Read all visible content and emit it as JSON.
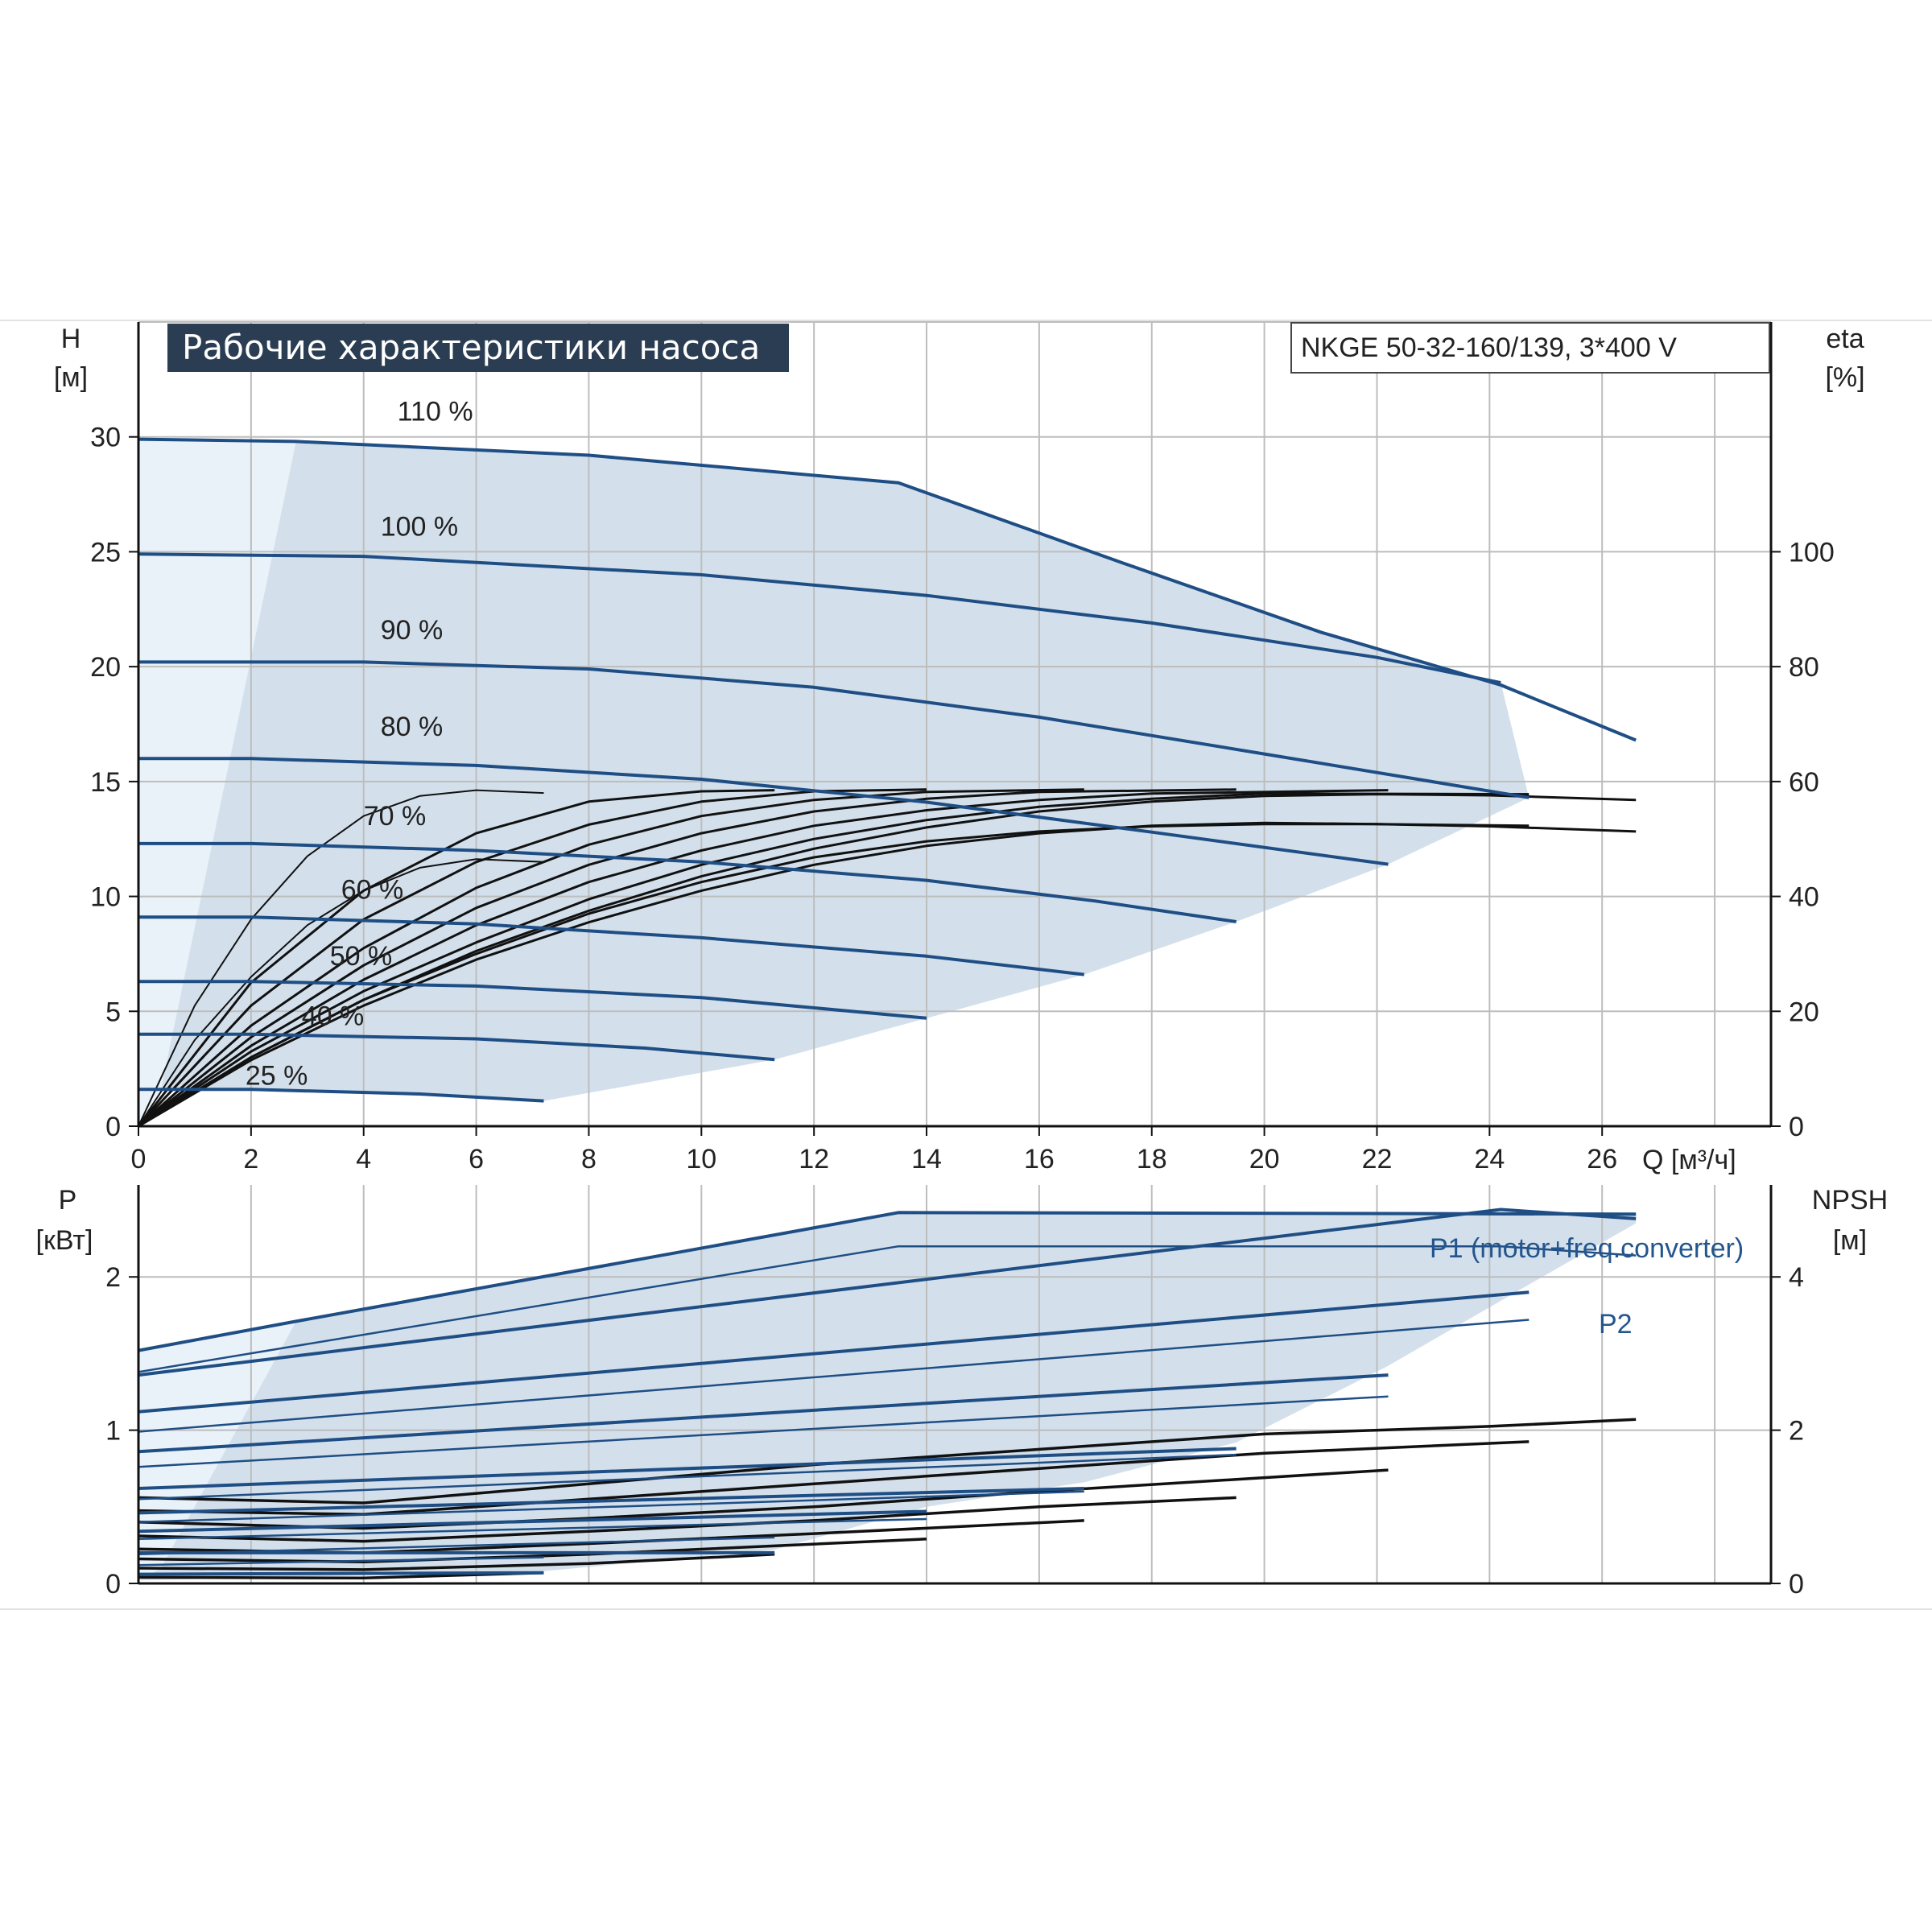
{
  "chart_data": [
    {
      "type": "line",
      "title": "Рабочие характеристики насоса",
      "model_label": "NKGE 50-32-160/139, 3*400 V",
      "left_axis": {
        "label_line1": "H",
        "label_line2": "[м]",
        "ylim": [
          0,
          35
        ],
        "ticks": [
          0,
          5,
          10,
          15,
          20,
          25,
          30
        ],
        "tick_labels": [
          "0",
          "5",
          "10",
          "15",
          "20",
          "25",
          "30"
        ]
      },
      "right_axis": {
        "label_line1": "eta",
        "label_line2": "[%]",
        "ylim": [
          0,
          140
        ],
        "ticks": [
          0,
          20,
          40,
          60,
          80,
          100
        ],
        "tick_labels": [
          "0",
          "20",
          "40",
          "60",
          "80",
          "100"
        ]
      },
      "x_axis": {
        "label": "Q [м³/ч]",
        "xlim": [
          0,
          29
        ],
        "ticks": [
          0,
          2,
          4,
          6,
          8,
          10,
          12,
          14,
          16,
          18,
          20,
          22,
          24,
          26
        ],
        "tick_labels": [
          "0",
          "2",
          "4",
          "6",
          "8",
          "10",
          "12",
          "14",
          "16",
          "18",
          "20",
          "22",
          "24",
          "26"
        ]
      },
      "grid": true,
      "operating_area_color": "#d3e0ec",
      "min_flow_area_color": "#eaf2f9",
      "head_series": [
        {
          "name": "110 %",
          "x": [
            0,
            2.8,
            8,
            13.5,
            17.5,
            21,
            24.2,
            26.6
          ],
          "y": [
            29.9,
            29.8,
            29.2,
            28.0,
            24.5,
            21.5,
            19.2,
            16.8
          ]
        },
        {
          "name": "100 %",
          "x": [
            0,
            4,
            10,
            14,
            18,
            22,
            24.2
          ],
          "y": [
            24.9,
            24.8,
            24.0,
            23.1,
            21.9,
            20.4,
            19.3
          ]
        },
        {
          "name": "90 %",
          "x": [
            0,
            4,
            8,
            12,
            16,
            20,
            24.7
          ],
          "y": [
            20.2,
            20.2,
            19.9,
            19.1,
            17.8,
            16.2,
            14.3
          ]
        },
        {
          "name": "80 %",
          "x": [
            0,
            2,
            6,
            10,
            14,
            18,
            22.2
          ],
          "y": [
            16.0,
            16.0,
            15.7,
            15.1,
            14.1,
            12.8,
            11.4
          ]
        },
        {
          "name": "70 %",
          "x": [
            0,
            2,
            6,
            10,
            14,
            17,
            19.5
          ],
          "y": [
            12.3,
            12.3,
            12.0,
            11.5,
            10.7,
            9.8,
            8.9
          ]
        },
        {
          "name": "60 %",
          "x": [
            0,
            2,
            6,
            10,
            14,
            16.8
          ],
          "y": [
            9.1,
            9.1,
            8.8,
            8.2,
            7.4,
            6.6
          ]
        },
        {
          "name": "50 %",
          "x": [
            0,
            2,
            6,
            10,
            14
          ],
          "y": [
            6.3,
            6.3,
            6.1,
            5.6,
            4.7
          ]
        },
        {
          "name": "40 %",
          "x": [
            0,
            2,
            6,
            9,
            11.3
          ],
          "y": [
            4.0,
            4.0,
            3.8,
            3.4,
            2.9
          ]
        },
        {
          "name": "25 %",
          "x": [
            0,
            2,
            5,
            7.2
          ],
          "y": [
            1.6,
            1.6,
            1.4,
            1.1
          ]
        }
      ],
      "eta_series": [
        {
          "x": [
            0,
            1,
            2,
            3,
            4,
            5,
            6,
            7.2
          ],
          "y": [
            0,
            21,
            36,
            47,
            54,
            57.5,
            58.5,
            58
          ]
        },
        {
          "x": [
            0,
            2,
            4,
            6,
            8,
            10,
            11.3
          ],
          "y": [
            0,
            25,
            41,
            51,
            56.5,
            58.3,
            58.5
          ]
        },
        {
          "x": [
            0,
            2,
            4,
            6,
            8,
            10,
            12,
            14
          ],
          "y": [
            0,
            21,
            36,
            46,
            52.5,
            56.5,
            58.3,
            58.6
          ]
        },
        {
          "x": [
            0,
            2,
            4,
            6,
            8,
            10,
            12,
            14,
            16.8
          ],
          "y": [
            0,
            17.5,
            31,
            41.5,
            49,
            54,
            56.8,
            58.2,
            58.6
          ]
        },
        {
          "x": [
            0,
            2,
            4,
            6,
            8,
            10,
            12,
            14,
            16,
            19.5
          ],
          "y": [
            0,
            15.5,
            28,
            38,
            45.5,
            51,
            54.8,
            57,
            58.2,
            58.6
          ]
        },
        {
          "x": [
            0,
            2,
            4,
            6,
            8,
            10,
            12,
            14,
            16,
            18,
            22.2
          ],
          "y": [
            0,
            14,
            25.5,
            35,
            42.5,
            48,
            52.3,
            55,
            56.8,
            57.9,
            58.5
          ]
        },
        {
          "x": [
            0,
            2,
            4,
            6,
            8,
            10,
            12,
            14,
            16,
            18,
            20,
            24.7
          ],
          "y": [
            0,
            13,
            23.5,
            32,
            39.5,
            45.5,
            50,
            53.3,
            55.6,
            57,
            57.9,
            57.8
          ]
        },
        {
          "x": [
            0,
            2,
            4,
            6,
            8,
            10,
            12,
            14,
            16,
            18,
            20,
            22,
            24,
            26.6
          ],
          "y": [
            0,
            12,
            22,
            30.5,
            37.5,
            43.5,
            48.3,
            52,
            54.8,
            56.5,
            57.5,
            57.8,
            57.6,
            56.8
          ]
        },
        {
          "x": [
            0,
            2,
            4,
            6,
            8,
            10,
            12,
            14,
            16,
            18,
            20,
            22,
            24,
            26.6
          ],
          "y": [
            0,
            11.5,
            21,
            29,
            35.5,
            41,
            45.5,
            48.8,
            51,
            52.3,
            52.8,
            52.6,
            52.2,
            51.3
          ]
        },
        {
          "x": [
            0,
            2,
            4,
            6,
            8,
            10,
            12,
            14,
            16,
            18,
            20,
            22,
            24.7
          ],
          "y": [
            0,
            12,
            22,
            30,
            37,
            42.5,
            46.8,
            49.6,
            51.3,
            52.2,
            52.6,
            52.6,
            52.3
          ]
        },
        {
          "x": [
            0,
            1,
            2,
            3,
            4,
            5,
            6,
            7.2
          ],
          "y": [
            0,
            15,
            26,
            35,
            41,
            45,
            46.5,
            46
          ]
        }
      ]
    },
    {
      "type": "line",
      "left_axis": {
        "label_line1": "P",
        "label_line2": "[кВт]",
        "ylim": [
          0,
          2.6
        ],
        "ticks": [
          0,
          1,
          2
        ],
        "tick_labels": [
          "0",
          "1",
          "2"
        ]
      },
      "right_axis": {
        "label_line1": "NPSH",
        "label_line2": "[м]",
        "ylim": [
          0,
          5.2
        ],
        "ticks": [
          0,
          2,
          4
        ],
        "tick_labels": [
          "0",
          "2",
          "4"
        ]
      },
      "x_axis": {
        "xlim": [
          0,
          29
        ]
      },
      "grid": true,
      "annotations": {
        "p1": "P1 (motor+freq.converter)",
        "p2": "P2"
      },
      "p1_series": [
        {
          "name": "110 %",
          "x": [
            0,
            2.8,
            13.5,
            26.6
          ],
          "y": [
            1.52,
            1.71,
            2.42,
            2.41
          ]
        },
        {
          "name": "100 %",
          "x": [
            0,
            24.2,
            26.6
          ],
          "y": [
            1.36,
            2.44,
            2.38
          ]
        },
        {
          "name": "90 %",
          "x": [
            0,
            24.7
          ],
          "y": [
            1.12,
            1.9
          ]
        },
        {
          "name": "80 %",
          "x": [
            0,
            22.2
          ],
          "y": [
            0.86,
            1.36
          ]
        },
        {
          "name": "70 %",
          "x": [
            0,
            19.5
          ],
          "y": [
            0.62,
            0.88
          ]
        },
        {
          "name": "60 %",
          "x": [
            0,
            16.8
          ],
          "y": [
            0.46,
            0.62
          ]
        },
        {
          "name": "50 %",
          "x": [
            0,
            14
          ],
          "y": [
            0.34,
            0.47
          ]
        },
        {
          "name": "40 %",
          "x": [
            0,
            11.3
          ],
          "y": [
            0.2,
            0.2
          ]
        },
        {
          "name": "25 %",
          "x": [
            0,
            7.2
          ],
          "y": [
            0.06,
            0.07
          ]
        }
      ],
      "p2_series": [
        {
          "x": [
            0,
            13.5,
            24.2,
            26.6
          ],
          "y": [
            1.38,
            2.2,
            2.2,
            2.14
          ]
        },
        {
          "x": [
            0,
            24.7
          ],
          "y": [
            0.99,
            1.72
          ]
        },
        {
          "x": [
            0,
            22.2
          ],
          "y": [
            0.76,
            1.22
          ]
        },
        {
          "x": [
            0,
            19.5
          ],
          "y": [
            0.55,
            0.84
          ]
        },
        {
          "x": [
            0,
            16.8
          ],
          "y": [
            0.4,
            0.6
          ]
        },
        {
          "x": [
            0,
            14
          ],
          "y": [
            0.29,
            0.42
          ]
        },
        {
          "x": [
            0,
            11.3
          ],
          "y": [
            0.19,
            0.3
          ]
        },
        {
          "x": [
            0,
            7.2
          ],
          "y": [
            0.12,
            0.17
          ]
        }
      ],
      "npsh_series": [
        {
          "x": [
            0,
            4,
            8,
            12,
            16,
            20,
            24,
            26.6
          ],
          "y": [
            1.12,
            1.05,
            1.3,
            1.55,
            1.75,
            1.95,
            2.05,
            2.14
          ]
        },
        {
          "x": [
            0,
            4,
            8,
            12,
            16,
            20,
            24.7
          ],
          "y": [
            0.95,
            0.9,
            1.1,
            1.3,
            1.5,
            1.7,
            1.85
          ]
        },
        {
          "x": [
            0,
            4,
            8,
            12,
            16,
            22.2
          ],
          "y": [
            0.8,
            0.72,
            0.85,
            1.0,
            1.2,
            1.48
          ]
        },
        {
          "x": [
            0,
            4,
            8,
            12,
            16,
            19.5
          ],
          "y": [
            0.62,
            0.55,
            0.68,
            0.82,
            1.0,
            1.12
          ]
        },
        {
          "x": [
            0,
            4,
            8,
            12,
            16.8
          ],
          "y": [
            0.45,
            0.4,
            0.52,
            0.65,
            0.82
          ]
        },
        {
          "x": [
            0,
            4,
            8,
            14
          ],
          "y": [
            0.32,
            0.28,
            0.38,
            0.58
          ]
        },
        {
          "x": [
            0,
            4,
            8,
            11.3
          ],
          "y": [
            0.2,
            0.18,
            0.26,
            0.38
          ]
        },
        {
          "x": [
            0,
            4,
            7.2
          ],
          "y": [
            0.08,
            0.07,
            0.14
          ]
        }
      ]
    }
  ],
  "colors": {
    "curve_blue": "#1f4e85",
    "curve_black": "#111111",
    "grid": "#bdbdbd",
    "title_bg": "#2b3d52"
  }
}
